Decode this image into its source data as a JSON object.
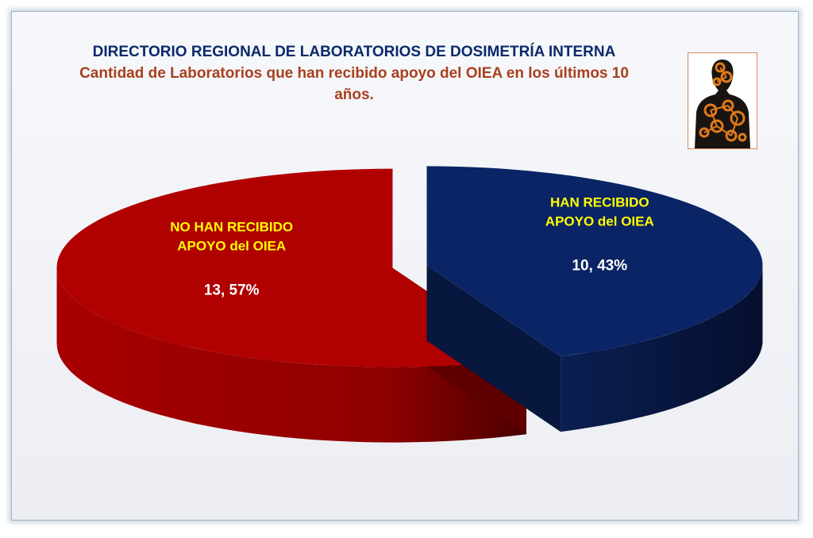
{
  "title": "DIRECTORIO REGIONAL DE LABORATORIOS  DE DOSIMETRÍA INTERNA",
  "subtitle": "Cantidad de Laboratorios que han recibido apoyo del OIEA en los últimos 10 años.",
  "chart_data": {
    "type": "pie",
    "title": "DIRECTORIO REGIONAL DE LABORATORIOS  DE DOSIMETRÍA INTERNA",
    "subtitle": "Cantidad de Laboratorios que han recibido apoyo del OIEA en los últimos 10 años.",
    "slices": [
      {
        "label_lines": [
          "NO HAN RECIBIDO",
          "APOYO del OIEA"
        ],
        "value": 13,
        "percent": 57,
        "data_label": "13, 57%",
        "color": "#b00000"
      },
      {
        "label_lines": [
          "HAN RECIBIDO",
          "APOYO del OIEA"
        ],
        "value": 10,
        "percent": 43,
        "data_label": "10, 43%",
        "color": "#0b2466"
      }
    ],
    "style": "3d-exploded",
    "label_color": "#ffff00",
    "value_color": "#ffffff"
  },
  "decor": {
    "figure": "human-body-silhouette-icon"
  }
}
